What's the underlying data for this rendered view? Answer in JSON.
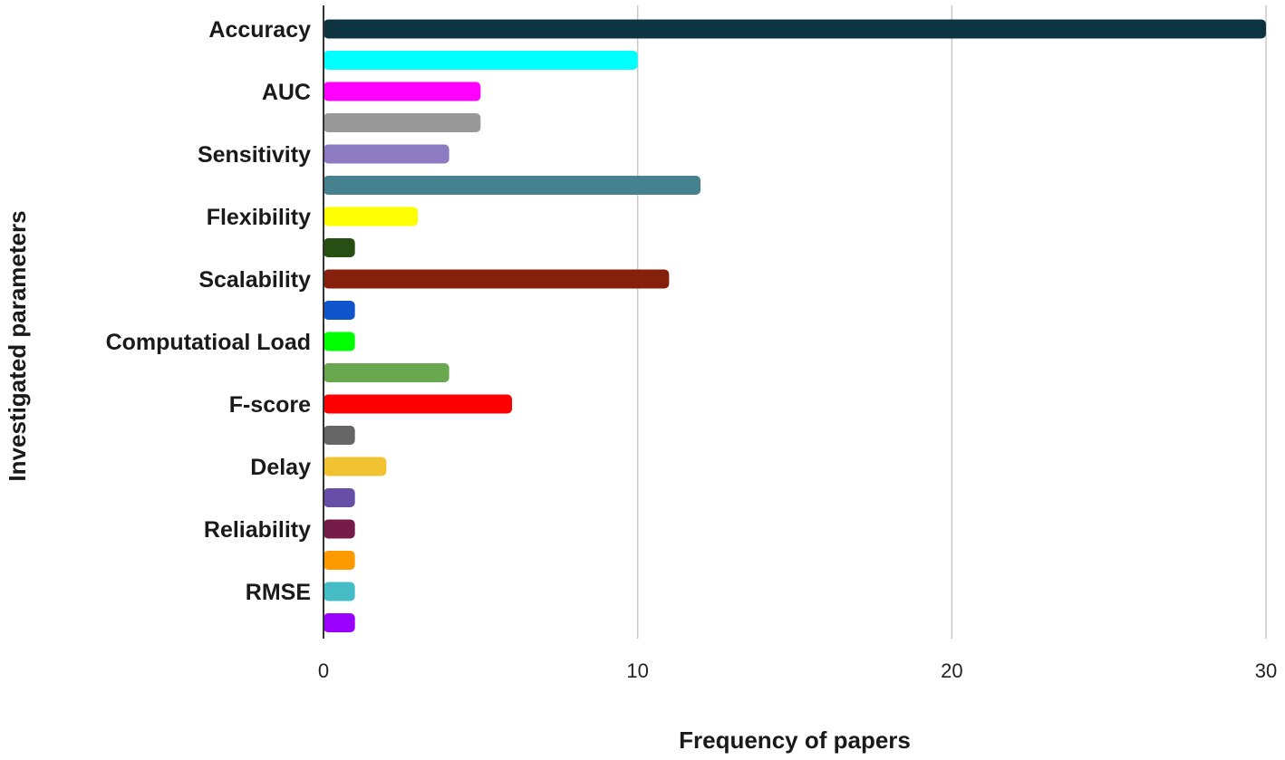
{
  "chart_data": {
    "type": "bar",
    "orientation": "horizontal",
    "xlabel": "Frequency of papers",
    "ylabel": "Investigated parameters",
    "xlim": [
      0,
      30
    ],
    "xticks": [
      0,
      10,
      20,
      30
    ],
    "grid": "vertical",
    "legend": "none",
    "bars": [
      {
        "label": "Accuracy",
        "value": 30,
        "color": "#0b3340"
      },
      {
        "label": "",
        "value": 10,
        "color": "#00ffff"
      },
      {
        "label": "AUC",
        "value": 5,
        "color": "#ff00ff"
      },
      {
        "label": "",
        "value": 5,
        "color": "#999999"
      },
      {
        "label": "Sensitivity",
        "value": 4,
        "color": "#8e7cc3"
      },
      {
        "label": "",
        "value": 12,
        "color": "#45818e"
      },
      {
        "label": "Flexibility",
        "value": 3,
        "color": "#ffff00"
      },
      {
        "label": "",
        "value": 1,
        "color": "#274e13"
      },
      {
        "label": "Scalability",
        "value": 11,
        "color": "#85200c"
      },
      {
        "label": "",
        "value": 1,
        "color": "#1155cc"
      },
      {
        "label": "Computatioal Load",
        "value": 1,
        "color": "#00ff00"
      },
      {
        "label": "",
        "value": 4,
        "color": "#6aa84f"
      },
      {
        "label": "F-score",
        "value": 6,
        "color": "#ff0000"
      },
      {
        "label": "",
        "value": 1,
        "color": "#666666"
      },
      {
        "label": "Delay",
        "value": 2,
        "color": "#f1c232"
      },
      {
        "label": "",
        "value": 1,
        "color": "#674ea7"
      },
      {
        "label": "Reliability",
        "value": 1,
        "color": "#741b47"
      },
      {
        "label": "",
        "value": 1,
        "color": "#ff9900"
      },
      {
        "label": "RMSE",
        "value": 1,
        "color": "#46bdc6"
      },
      {
        "label": "",
        "value": 1,
        "color": "#9900ff"
      }
    ]
  }
}
